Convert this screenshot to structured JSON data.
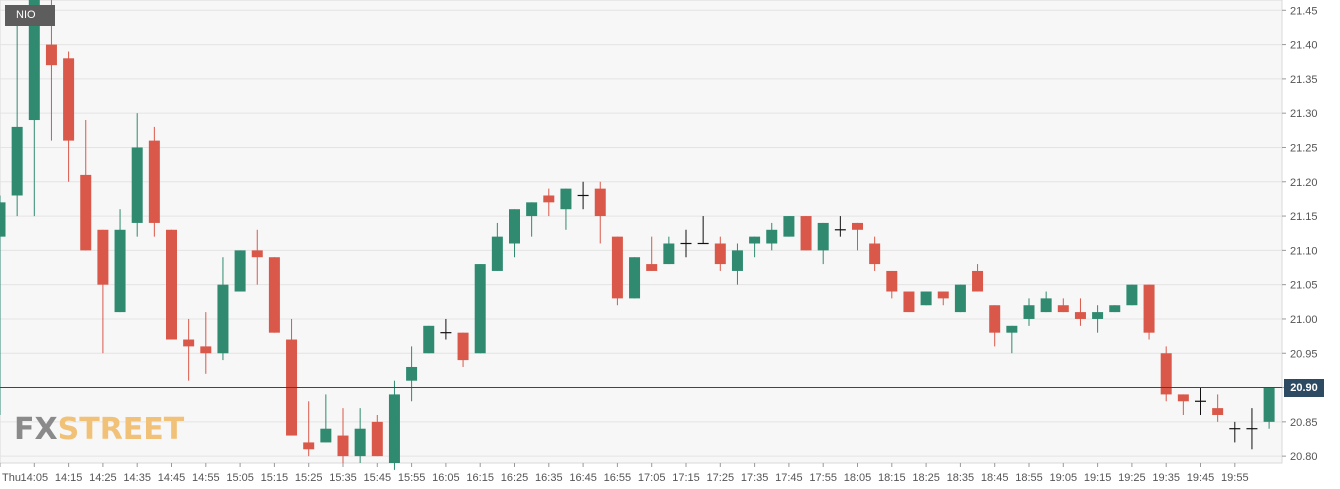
{
  "symbol": "NIO",
  "current_price": "20.90",
  "watermark": {
    "part1": "FX",
    "part2": "STREET"
  },
  "chart_data": {
    "type": "candlestick",
    "title": "",
    "xlabel": "",
    "ylabel": "",
    "ylim": [
      20.79,
      21.465
    ],
    "y_ticks": [
      "20.80",
      "20.85",
      "20.90",
      "20.95",
      "21.00",
      "21.05",
      "21.10",
      "21.15",
      "21.20",
      "21.25",
      "21.30",
      "21.35",
      "21.40",
      "21.45"
    ],
    "x_ticks": [
      "Thu",
      "14:05",
      "14:15",
      "14:25",
      "14:35",
      "14:45",
      "14:55",
      "15:05",
      "15:15",
      "15:25",
      "15:35",
      "15:45",
      "15:55",
      "16:05",
      "16:15",
      "16:25",
      "16:35",
      "16:45",
      "16:55",
      "17:05",
      "17:15",
      "17:25",
      "17:35",
      "17:45",
      "17:55",
      "18:05",
      "18:15",
      "18:25",
      "18:35",
      "18:45",
      "18:55",
      "19:05",
      "19:15",
      "19:25",
      "19:35",
      "19:45",
      "19:55"
    ],
    "price_line": 20.9,
    "grid": true,
    "up_color": "#2f8a70",
    "down_color": "#d9584a",
    "doji_color": "#111111",
    "candles": [
      {
        "t": "13:55",
        "o": 21.12,
        "h": 21.18,
        "l": 20.86,
        "c": 21.17
      },
      {
        "t": "14:00",
        "o": 21.18,
        "h": 21.43,
        "l": 21.15,
        "c": 21.28
      },
      {
        "t": "14:05",
        "o": 21.29,
        "h": 21.49,
        "l": 21.15,
        "c": 21.47
      },
      {
        "t": "14:10",
        "o": 21.4,
        "h": 21.47,
        "l": 21.26,
        "c": 21.37
      },
      {
        "t": "14:15",
        "o": 21.38,
        "h": 21.39,
        "l": 21.2,
        "c": 21.26
      },
      {
        "t": "14:20",
        "o": 21.21,
        "h": 21.29,
        "l": 21.1,
        "c": 21.1
      },
      {
        "t": "14:25",
        "o": 21.13,
        "h": 21.13,
        "l": 20.95,
        "c": 21.05
      },
      {
        "t": "14:30",
        "o": 21.01,
        "h": 21.16,
        "l": 21.01,
        "c": 21.13
      },
      {
        "t": "14:35",
        "o": 21.14,
        "h": 21.3,
        "l": 21.12,
        "c": 21.25
      },
      {
        "t": "14:40",
        "o": 21.26,
        "h": 21.28,
        "l": 21.12,
        "c": 21.14
      },
      {
        "t": "14:45",
        "o": 21.13,
        "h": 21.13,
        "l": 20.97,
        "c": 20.97
      },
      {
        "t": "14:50",
        "o": 20.97,
        "h": 21.0,
        "l": 20.91,
        "c": 20.96
      },
      {
        "t": "14:55",
        "o": 20.96,
        "h": 21.01,
        "l": 20.92,
        "c": 20.95
      },
      {
        "t": "15:00",
        "o": 20.95,
        "h": 21.09,
        "l": 20.94,
        "c": 21.05
      },
      {
        "t": "15:05",
        "o": 21.04,
        "h": 21.1,
        "l": 21.04,
        "c": 21.1
      },
      {
        "t": "15:10",
        "o": 21.1,
        "h": 21.13,
        "l": 21.05,
        "c": 21.09
      },
      {
        "t": "15:15",
        "o": 21.09,
        "h": 21.09,
        "l": 20.98,
        "c": 20.98
      },
      {
        "t": "15:20",
        "o": 20.97,
        "h": 21.0,
        "l": 20.83,
        "c": 20.83
      },
      {
        "t": "15:25",
        "o": 20.82,
        "h": 20.88,
        "l": 20.8,
        "c": 20.81
      },
      {
        "t": "15:30",
        "o": 20.82,
        "h": 20.89,
        "l": 20.82,
        "c": 20.84
      },
      {
        "t": "15:35",
        "o": 20.83,
        "h": 20.87,
        "l": 20.79,
        "c": 20.8
      },
      {
        "t": "15:40",
        "o": 20.8,
        "h": 20.87,
        "l": 20.79,
        "c": 20.84
      },
      {
        "t": "15:45",
        "o": 20.85,
        "h": 20.86,
        "l": 20.8,
        "c": 20.8
      },
      {
        "t": "15:50",
        "o": 20.79,
        "h": 20.91,
        "l": 20.78,
        "c": 20.89
      },
      {
        "t": "15:55",
        "o": 20.91,
        "h": 20.96,
        "l": 20.88,
        "c": 20.93
      },
      {
        "t": "16:00",
        "o": 20.95,
        "h": 20.99,
        "l": 20.95,
        "c": 20.99
      },
      {
        "t": "16:05",
        "o": 20.98,
        "h": 21.0,
        "l": 20.97,
        "c": 20.98
      },
      {
        "t": "16:10",
        "o": 20.98,
        "h": 20.98,
        "l": 20.93,
        "c": 20.94
      },
      {
        "t": "16:15",
        "o": 20.95,
        "h": 21.08,
        "l": 20.95,
        "c": 21.08
      },
      {
        "t": "16:20",
        "o": 21.07,
        "h": 21.14,
        "l": 21.07,
        "c": 21.12
      },
      {
        "t": "16:25",
        "o": 21.11,
        "h": 21.16,
        "l": 21.09,
        "c": 21.16
      },
      {
        "t": "16:30",
        "o": 21.15,
        "h": 21.17,
        "l": 21.12,
        "c": 21.17
      },
      {
        "t": "16:35",
        "o": 21.18,
        "h": 21.19,
        "l": 21.15,
        "c": 21.17
      },
      {
        "t": "16:40",
        "o": 21.16,
        "h": 21.19,
        "l": 21.13,
        "c": 21.19
      },
      {
        "t": "16:45",
        "o": 21.18,
        "h": 21.2,
        "l": 21.16,
        "c": 21.18
      },
      {
        "t": "16:50",
        "o": 21.19,
        "h": 21.2,
        "l": 21.11,
        "c": 21.15
      },
      {
        "t": "16:55",
        "o": 21.12,
        "h": 21.12,
        "l": 21.02,
        "c": 21.03
      },
      {
        "t": "17:00",
        "o": 21.03,
        "h": 21.09,
        "l": 21.03,
        "c": 21.09
      },
      {
        "t": "17:05",
        "o": 21.08,
        "h": 21.12,
        "l": 21.07,
        "c": 21.07
      },
      {
        "t": "17:10",
        "o": 21.08,
        "h": 21.12,
        "l": 21.08,
        "c": 21.11
      },
      {
        "t": "17:15",
        "o": 21.11,
        "h": 21.13,
        "l": 21.09,
        "c": 21.11
      },
      {
        "t": "17:20",
        "o": 21.11,
        "h": 21.15,
        "l": 21.11,
        "c": 21.11
      },
      {
        "t": "17:25",
        "o": 21.11,
        "h": 21.12,
        "l": 21.07,
        "c": 21.08
      },
      {
        "t": "17:30",
        "o": 21.07,
        "h": 21.11,
        "l": 21.05,
        "c": 21.1
      },
      {
        "t": "17:35",
        "o": 21.11,
        "h": 21.12,
        "l": 21.09,
        "c": 21.12
      },
      {
        "t": "17:40",
        "o": 21.11,
        "h": 21.14,
        "l": 21.1,
        "c": 21.13
      },
      {
        "t": "17:45",
        "o": 21.12,
        "h": 21.15,
        "l": 21.12,
        "c": 21.15
      },
      {
        "t": "17:50",
        "o": 21.15,
        "h": 21.15,
        "l": 21.1,
        "c": 21.1
      },
      {
        "t": "17:55",
        "o": 21.1,
        "h": 21.14,
        "l": 21.08,
        "c": 21.14
      },
      {
        "t": "18:00",
        "o": 21.13,
        "h": 21.15,
        "l": 21.12,
        "c": 21.13
      },
      {
        "t": "18:05",
        "o": 21.14,
        "h": 21.14,
        "l": 21.1,
        "c": 21.13
      },
      {
        "t": "18:10",
        "o": 21.11,
        "h": 21.12,
        "l": 21.07,
        "c": 21.08
      },
      {
        "t": "18:15",
        "o": 21.07,
        "h": 21.07,
        "l": 21.03,
        "c": 21.04
      },
      {
        "t": "18:20",
        "o": 21.04,
        "h": 21.04,
        "l": 21.01,
        "c": 21.01
      },
      {
        "t": "18:25",
        "o": 21.02,
        "h": 21.04,
        "l": 21.02,
        "c": 21.04
      },
      {
        "t": "18:30",
        "o": 21.04,
        "h": 21.04,
        "l": 21.02,
        "c": 21.03
      },
      {
        "t": "18:35",
        "o": 21.01,
        "h": 21.05,
        "l": 21.01,
        "c": 21.05
      },
      {
        "t": "18:40",
        "o": 21.07,
        "h": 21.08,
        "l": 21.04,
        "c": 21.04
      },
      {
        "t": "18:45",
        "o": 21.02,
        "h": 21.02,
        "l": 20.96,
        "c": 20.98
      },
      {
        "t": "18:50",
        "o": 20.98,
        "h": 20.99,
        "l": 20.95,
        "c": 20.99
      },
      {
        "t": "18:55",
        "o": 21.0,
        "h": 21.03,
        "l": 20.99,
        "c": 21.02
      },
      {
        "t": "19:00",
        "o": 21.01,
        "h": 21.04,
        "l": 21.01,
        "c": 21.03
      },
      {
        "t": "19:05",
        "o": 21.02,
        "h": 21.03,
        "l": 21.01,
        "c": 21.01
      },
      {
        "t": "19:10",
        "o": 21.01,
        "h": 21.03,
        "l": 20.99,
        "c": 21.0
      },
      {
        "t": "19:15",
        "o": 21.0,
        "h": 21.02,
        "l": 20.98,
        "c": 21.01
      },
      {
        "t": "19:20",
        "o": 21.01,
        "h": 21.02,
        "l": 21.01,
        "c": 21.02
      },
      {
        "t": "19:25",
        "o": 21.02,
        "h": 21.05,
        "l": 21.02,
        "c": 21.05
      },
      {
        "t": "19:30",
        "o": 21.05,
        "h": 21.05,
        "l": 20.97,
        "c": 20.98
      },
      {
        "t": "19:35",
        "o": 20.95,
        "h": 20.96,
        "l": 20.88,
        "c": 20.89
      },
      {
        "t": "19:40",
        "o": 20.89,
        "h": 20.89,
        "l": 20.86,
        "c": 20.88
      },
      {
        "t": "19:45",
        "o": 20.88,
        "h": 20.9,
        "l": 20.86,
        "c": 20.88
      },
      {
        "t": "19:50",
        "o": 20.87,
        "h": 20.89,
        "l": 20.85,
        "c": 20.86
      },
      {
        "t": "19:55",
        "o": 20.84,
        "h": 20.85,
        "l": 20.82,
        "c": 20.84
      },
      {
        "t": "20:00",
        "o": 20.84,
        "h": 20.87,
        "l": 20.81,
        "c": 20.84
      },
      {
        "t": "20:05",
        "o": 20.85,
        "h": 20.9,
        "l": 20.84,
        "c": 20.9
      }
    ]
  }
}
